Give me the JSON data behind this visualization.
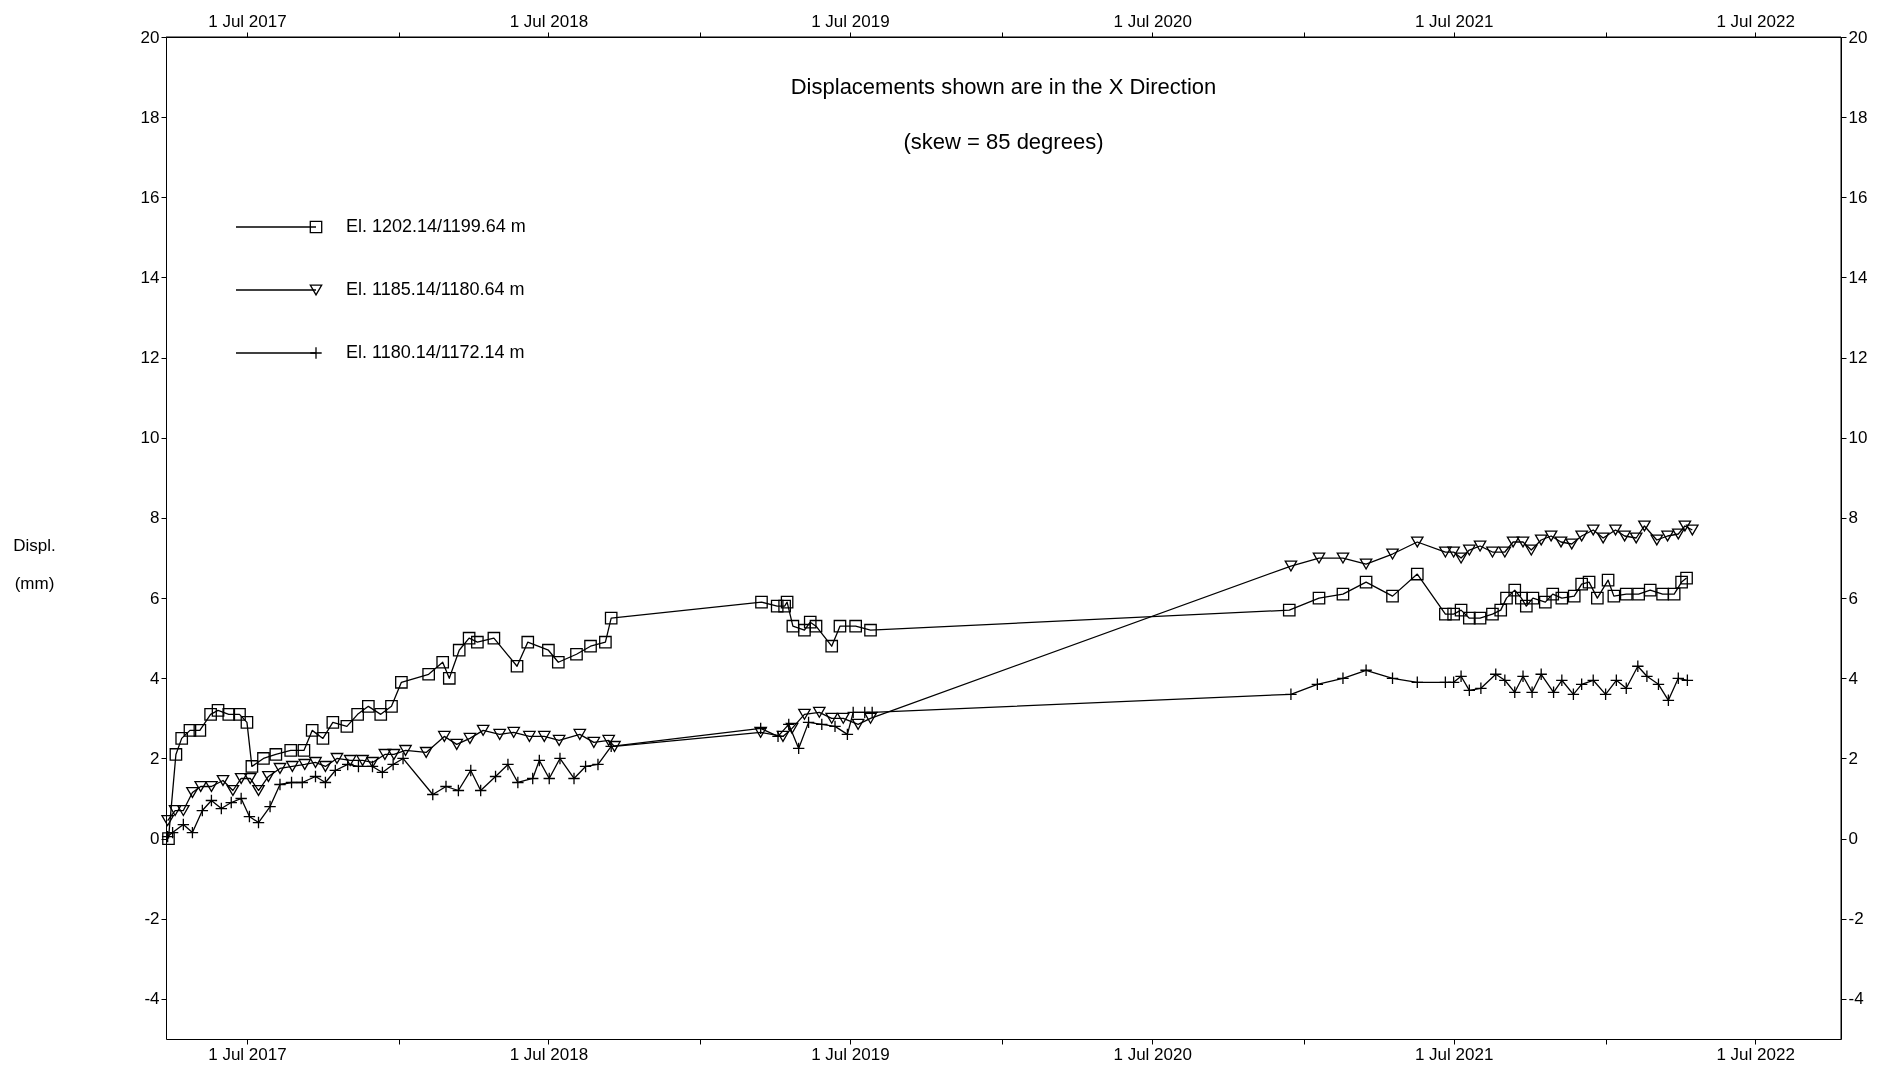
{
  "chart_data": {
    "type": "line",
    "title": "Displacements shown are in the  X Direction",
    "subtitle": "(skew = 85 degrees)",
    "ylabel": "Displ.\n(mm)",
    "xlim": [
      "2017-03-25",
      "2022-10-13"
    ],
    "xticks": [
      {
        "value": "2017-07-01",
        "label": "1 Jul 2017"
      },
      {
        "value": "2018-01-01",
        "label": null
      },
      {
        "value": "2018-07-01",
        "label": "1 Jul 2018"
      },
      {
        "value": "2019-01-01",
        "label": null
      },
      {
        "value": "2019-07-01",
        "label": "1 Jul 2019"
      },
      {
        "value": "2020-01-01",
        "label": null
      },
      {
        "value": "2020-07-01",
        "label": "1 Jul 2020"
      },
      {
        "value": "2021-01-01",
        "label": null
      },
      {
        "value": "2021-07-01",
        "label": "1 Jul 2021"
      },
      {
        "value": "2022-01-01",
        "label": null
      },
      {
        "value": "2022-07-01",
        "label": "1 Jul 2022"
      }
    ],
    "x2lim": [
      "2017-03-25",
      "2022-10-13"
    ],
    "x2ticks": [
      {
        "value": "2017-07-01",
        "label": "1 Jul 2017"
      },
      {
        "value": "2018-01-01",
        "label": null
      },
      {
        "value": "2018-07-01",
        "label": "1 Jul 2018"
      },
      {
        "value": "2019-01-01",
        "label": null
      },
      {
        "value": "2019-07-01",
        "label": "1 Jul 2019"
      },
      {
        "value": "2020-01-01",
        "label": null
      },
      {
        "value": "2020-07-01",
        "label": "1 Jul 2020"
      },
      {
        "value": "2021-01-01",
        "label": null
      },
      {
        "value": "2021-07-01",
        "label": "1 Jul 2021"
      },
      {
        "value": "2022-01-01",
        "label": null
      },
      {
        "value": "2022-07-01",
        "label": "1 Jul 2022"
      }
    ],
    "ylim": [
      -5,
      20
    ],
    "yticks": [
      -4,
      -2,
      0,
      2,
      4,
      6,
      8,
      10,
      12,
      14,
      16,
      18,
      20
    ],
    "y2lim": [
      -5,
      20
    ],
    "y2ticks": [
      -4,
      -2,
      0,
      2,
      4,
      6,
      8,
      10,
      12,
      14,
      16,
      18,
      20
    ],
    "grid": false,
    "legend": "top left",
    "line_style": "solid",
    "series": [
      {
        "name": "El. 1202.14/1199.64 m",
        "color": "#000000",
        "marker": "square",
        "x": [
          "2017-03-28",
          "2017-04-06",
          "2017-04-13",
          "2017-04-23",
          "2017-05-05",
          "2017-05-18",
          "2017-05-27",
          "2017-06-09",
          "2017-06-22",
          "2017-07-01",
          "2017-07-07",
          "2017-07-21",
          "2017-08-05",
          "2017-08-23",
          "2017-09-08",
          "2017-09-18",
          "2017-10-01",
          "2017-10-13",
          "2017-10-30",
          "2017-11-12",
          "2017-11-25",
          "2017-12-10",
          "2017-12-23",
          "2018-01-04",
          "2018-02-06",
          "2018-02-23",
          "2018-03-03",
          "2018-03-15",
          "2018-03-27",
          "2018-04-06",
          "2018-04-26",
          "2018-05-24",
          "2018-06-06",
          "2018-07-01",
          "2018-07-13",
          "2018-08-04",
          "2018-08-21",
          "2018-09-08",
          "2018-09-15",
          "2019-03-16",
          "2019-04-04",
          "2019-04-13",
          "2019-04-16",
          "2019-04-23",
          "2019-05-07",
          "2019-05-14",
          "2019-05-21",
          "2019-06-09",
          "2019-06-19",
          "2019-07-08",
          "2019-07-26",
          "2020-12-14",
          "2021-01-19",
          "2021-02-17",
          "2021-03-17",
          "2021-04-18",
          "2021-05-18",
          "2021-06-21",
          "2021-07-01",
          "2021-07-10",
          "2021-07-20",
          "2021-08-02",
          "2021-08-17",
          "2021-08-27",
          "2021-09-03",
          "2021-09-13",
          "2021-09-21",
          "2021-09-27",
          "2021-10-05",
          "2021-10-20",
          "2021-10-29",
          "2021-11-09",
          "2021-11-24",
          "2021-12-03",
          "2021-12-12",
          "2021-12-22",
          "2022-01-04",
          "2022-01-11",
          "2022-01-26",
          "2022-02-10",
          "2022-02-24",
          "2022-03-11",
          "2022-03-25",
          "2022-04-03",
          "2022-04-09"
        ],
        "values": [
          0.0,
          2.1,
          2.5,
          2.7,
          2.7,
          3.1,
          3.2,
          3.1,
          3.1,
          2.9,
          1.8,
          2.0,
          2.1,
          2.2,
          2.2,
          2.7,
          2.5,
          2.9,
          2.8,
          3.1,
          3.3,
          3.1,
          3.3,
          3.9,
          4.1,
          4.4,
          4.0,
          4.7,
          5.0,
          4.9,
          5.0,
          4.3,
          4.9,
          4.7,
          4.4,
          4.6,
          4.8,
          4.9,
          5.5,
          5.9,
          5.8,
          5.8,
          5.9,
          5.3,
          5.2,
          5.4,
          5.3,
          4.8,
          5.3,
          5.3,
          5.2,
          5.7,
          6.0,
          6.1,
          6.4,
          6.05,
          6.6,
          5.6,
          5.6,
          5.7,
          5.5,
          5.5,
          5.6,
          5.7,
          6.0,
          6.2,
          6.0,
          5.8,
          6.0,
          5.9,
          6.1,
          6.0,
          6.05,
          6.35,
          6.4,
          6.0,
          6.45,
          6.05,
          6.1,
          6.1,
          6.2,
          6.1,
          6.1,
          6.4,
          6.5
        ]
      },
      {
        "name": "El. 1185.14/1180.64 m",
        "color": "#000000",
        "marker": "triangle",
        "x": [
          "2017-03-27",
          "2017-04-05",
          "2017-04-15",
          "2017-04-26",
          "2017-05-06",
          "2017-05-19",
          "2017-06-02",
          "2017-06-14",
          "2017-06-24",
          "2017-07-05",
          "2017-07-15",
          "2017-07-27",
          "2017-08-10",
          "2017-08-25",
          "2017-09-09",
          "2017-09-22",
          "2017-10-04",
          "2017-10-18",
          "2017-11-03",
          "2017-11-18",
          "2017-11-30",
          "2017-12-15",
          "2017-12-26",
          "2018-01-09",
          "2018-02-03",
          "2018-02-25",
          "2018-03-12",
          "2018-03-28",
          "2018-04-13",
          "2018-05-03",
          "2018-05-20",
          "2018-06-08",
          "2018-06-26",
          "2018-07-14",
          "2018-08-08",
          "2018-08-25",
          "2018-09-12",
          "2018-09-19",
          "2019-03-15",
          "2019-04-11",
          "2019-04-22",
          "2019-05-07",
          "2019-05-25",
          "2019-06-09",
          "2019-06-23",
          "2019-07-11",
          "2019-07-26",
          "2020-12-16",
          "2021-01-19",
          "2021-02-17",
          "2021-03-17",
          "2021-04-18",
          "2021-05-18",
          "2021-06-21",
          "2021-07-01",
          "2021-07-10",
          "2021-07-20",
          "2021-08-02",
          "2021-08-17",
          "2021-09-01",
          "2021-09-11",
          "2021-09-23",
          "2021-10-03",
          "2021-10-15",
          "2021-10-27",
          "2021-11-08",
          "2021-11-21",
          "2021-12-03",
          "2021-12-17",
          "2021-12-29",
          "2022-01-13",
          "2022-01-24",
          "2022-02-07",
          "2022-02-17",
          "2022-03-04",
          "2022-03-17",
          "2022-03-30",
          "2022-04-07",
          "2022-04-16"
        ],
        "values": [
          0.45,
          0.7,
          0.7,
          1.15,
          1.3,
          1.3,
          1.45,
          1.2,
          1.5,
          1.5,
          1.2,
          1.55,
          1.75,
          1.8,
          1.85,
          1.9,
          1.8,
          2.0,
          1.95,
          1.95,
          1.9,
          2.1,
          2.1,
          2.2,
          2.15,
          2.55,
          2.35,
          2.5,
          2.7,
          2.6,
          2.65,
          2.55,
          2.55,
          2.45,
          2.6,
          2.4,
          2.45,
          2.3,
          2.65,
          2.55,
          2.75,
          3.1,
          3.15,
          3.0,
          3.0,
          2.85,
          3.0,
          6.8,
          7.0,
          7.0,
          6.85,
          7.1,
          7.4,
          7.15,
          7.15,
          7.0,
          7.2,
          7.3,
          7.15,
          7.15,
          7.4,
          7.4,
          7.2,
          7.45,
          7.55,
          7.4,
          7.35,
          7.55,
          7.7,
          7.5,
          7.7,
          7.55,
          7.5,
          7.8,
          7.45,
          7.55,
          7.6,
          7.8,
          7.7
        ]
      },
      {
        "name": "El. 1180.14/1172.14 m",
        "color": "#000000",
        "marker": "cross",
        "x": [
          "2017-03-27",
          "2017-04-02",
          "2017-04-15",
          "2017-04-26",
          "2017-05-08",
          "2017-05-19",
          "2017-05-31",
          "2017-06-12",
          "2017-06-24",
          "2017-07-04",
          "2017-07-15",
          "2017-07-29",
          "2017-08-10",
          "2017-08-24",
          "2017-09-06",
          "2017-09-22",
          "2017-10-04",
          "2017-10-16",
          "2017-10-31",
          "2017-11-13",
          "2017-11-30",
          "2017-12-12",
          "2017-12-25",
          "2018-01-06",
          "2018-02-11",
          "2018-02-27",
          "2018-03-14",
          "2018-03-29",
          "2018-04-10",
          "2018-04-28",
          "2018-05-13",
          "2018-05-25",
          "2018-06-12",
          "2018-06-20",
          "2018-07-02",
          "2018-07-15",
          "2018-08-01",
          "2018-08-15",
          "2018-08-30",
          "2018-09-15",
          "2019-03-15",
          "2019-04-05",
          "2019-04-18",
          "2019-04-30",
          "2019-05-12",
          "2019-05-28",
          "2019-06-13",
          "2019-06-28",
          "2019-07-05",
          "2019-07-19",
          "2019-07-28",
          "2020-12-16",
          "2021-01-17",
          "2021-02-17",
          "2021-03-17",
          "2021-04-18",
          "2021-05-18",
          "2021-06-21",
          "2021-07-01",
          "2021-07-10",
          "2021-07-20",
          "2021-08-03",
          "2021-08-21",
          "2021-09-01",
          "2021-09-13",
          "2021-09-23",
          "2021-10-04",
          "2021-10-15",
          "2021-10-30",
          "2021-11-09",
          "2021-11-23",
          "2021-12-03",
          "2021-12-17",
          "2022-01-01",
          "2022-01-14",
          "2022-01-26",
          "2022-02-09",
          "2022-02-20",
          "2022-03-06",
          "2022-03-18",
          "2022-03-30",
          "2022-04-10"
        ],
        "values": [
          0.05,
          0.15,
          0.35,
          0.15,
          0.7,
          0.95,
          0.75,
          0.9,
          1.0,
          0.55,
          0.4,
          0.8,
          1.35,
          1.4,
          1.4,
          1.55,
          1.4,
          1.7,
          1.85,
          1.8,
          1.8,
          1.65,
          1.85,
          2.0,
          1.1,
          1.3,
          1.2,
          1.7,
          1.2,
          1.55,
          1.85,
          1.4,
          1.5,
          1.95,
          1.5,
          2.0,
          1.5,
          1.8,
          1.85,
          2.3,
          2.75,
          2.55,
          2.85,
          2.25,
          2.9,
          2.85,
          2.8,
          2.6,
          3.15,
          3.15,
          3.15,
          3.6,
          3.85,
          4.0,
          4.2,
          4.0,
          3.9,
          3.9,
          3.9,
          4.05,
          3.7,
          3.75,
          4.1,
          3.95,
          3.65,
          4.05,
          3.65,
          4.1,
          3.65,
          3.95,
          3.6,
          3.85,
          3.95,
          3.6,
          3.95,
          3.75,
          4.3,
          4.05,
          3.85,
          3.45,
          4.0,
          3.95
        ]
      }
    ]
  }
}
